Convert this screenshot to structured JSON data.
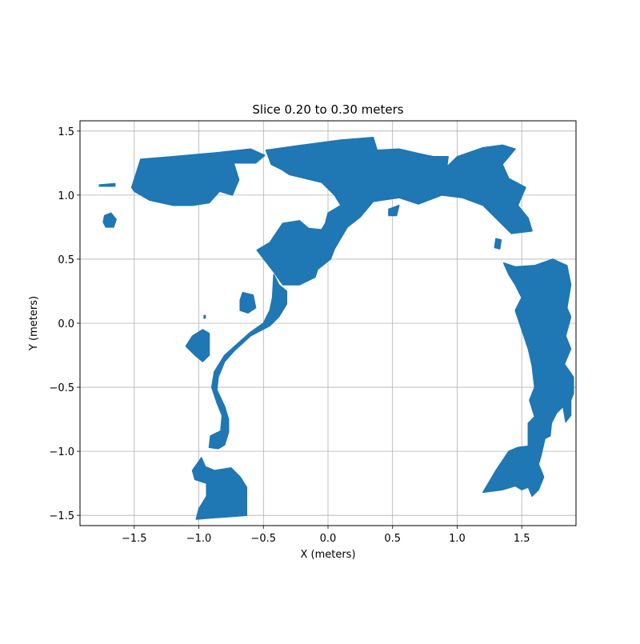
{
  "chart_data": {
    "type": "scatter",
    "title": "Slice 0.20 to 0.30 meters",
    "xlabel": "X (meters)",
    "ylabel": "Y (meters)",
    "xlim": [
      -1.92,
      1.92
    ],
    "ylim": [
      -1.58,
      1.58
    ],
    "x_ticks": [
      -1.5,
      -1.0,
      -0.5,
      0.0,
      0.5,
      1.0,
      1.5
    ],
    "x_tick_labels": [
      "−1.5",
      "−1.0",
      "−0.5",
      "0.0",
      "0.5",
      "1.0",
      "1.5"
    ],
    "y_ticks": [
      -1.5,
      -1.0,
      -0.5,
      0.0,
      0.5,
      1.0,
      1.5
    ],
    "y_tick_labels": [
      "−1.5",
      "−1.0",
      "−0.5",
      "0.0",
      "0.5",
      "1.0",
      "1.5"
    ],
    "grid": true,
    "color": "#1f77b4",
    "regions": [
      {
        "name": "top-left-mass",
        "points": [
          [
            -1.52,
            1.06
          ],
          [
            -1.45,
            1.28
          ],
          [
            -1.2,
            1.3
          ],
          [
            -0.87,
            1.33
          ],
          [
            -0.6,
            1.36
          ],
          [
            -0.49,
            1.31
          ],
          [
            -0.56,
            1.25
          ],
          [
            -0.73,
            1.25
          ],
          [
            -0.69,
            1.12
          ],
          [
            -0.74,
            1.0
          ],
          [
            -0.84,
            1.03
          ],
          [
            -0.92,
            0.94
          ],
          [
            -1.05,
            0.92
          ],
          [
            -1.2,
            0.92
          ],
          [
            -1.38,
            0.96
          ],
          [
            -1.5,
            1.03
          ]
        ]
      },
      {
        "name": "far-left-dash",
        "points": [
          [
            -1.77,
            1.08
          ],
          [
            -1.65,
            1.09
          ],
          [
            -1.65,
            1.07
          ],
          [
            -1.77,
            1.07
          ]
        ]
      },
      {
        "name": "left-blob",
        "points": [
          [
            -1.73,
            0.84
          ],
          [
            -1.68,
            0.86
          ],
          [
            -1.64,
            0.81
          ],
          [
            -1.66,
            0.75
          ],
          [
            -1.72,
            0.75
          ],
          [
            -1.74,
            0.79
          ]
        ]
      },
      {
        "name": "top-arc-center",
        "points": [
          [
            -0.48,
            1.35
          ],
          [
            -0.2,
            1.39
          ],
          [
            0.1,
            1.43
          ],
          [
            0.35,
            1.45
          ],
          [
            0.38,
            1.35
          ],
          [
            0.55,
            1.36
          ],
          [
            0.72,
            1.32
          ],
          [
            0.82,
            1.3
          ],
          [
            0.93,
            1.3
          ],
          [
            0.92,
            1.22
          ],
          [
            1.0,
            1.3
          ],
          [
            1.2,
            1.37
          ],
          [
            1.35,
            1.39
          ],
          [
            1.45,
            1.36
          ],
          [
            1.35,
            1.24
          ],
          [
            1.4,
            1.13
          ],
          [
            1.53,
            1.06
          ],
          [
            1.47,
            0.92
          ],
          [
            1.55,
            0.82
          ],
          [
            1.58,
            0.72
          ],
          [
            1.42,
            0.7
          ],
          [
            1.3,
            0.82
          ],
          [
            1.2,
            0.92
          ],
          [
            1.04,
            0.98
          ],
          [
            0.88,
            1.0
          ],
          [
            0.7,
            0.93
          ],
          [
            0.55,
            0.98
          ],
          [
            0.35,
            0.95
          ],
          [
            0.25,
            0.83
          ],
          [
            0.15,
            0.75
          ],
          [
            0.05,
            0.58
          ],
          [
            0.02,
            0.5
          ],
          [
            -0.08,
            0.42
          ],
          [
            -0.1,
            0.36
          ],
          [
            -0.22,
            0.3
          ],
          [
            -0.35,
            0.3
          ],
          [
            -0.42,
            0.4
          ],
          [
            -0.55,
            0.57
          ],
          [
            -0.45,
            0.63
          ],
          [
            -0.35,
            0.78
          ],
          [
            -0.22,
            0.8
          ],
          [
            -0.15,
            0.74
          ],
          [
            -0.05,
            0.73
          ],
          [
            -0.02,
            0.78
          ],
          [
            0.0,
            0.86
          ],
          [
            0.1,
            0.92
          ],
          [
            0.05,
            1.0
          ],
          [
            -0.05,
            1.1
          ],
          [
            -0.3,
            1.16
          ],
          [
            -0.36,
            1.2
          ],
          [
            -0.44,
            1.24
          ]
        ]
      },
      {
        "name": "right-arc-upper",
        "points": [
          [
            1.36,
            0.47
          ],
          [
            1.45,
            0.44
          ],
          [
            1.6,
            0.45
          ],
          [
            1.74,
            0.5
          ],
          [
            1.85,
            0.45
          ],
          [
            1.88,
            0.3
          ],
          [
            1.85,
            0.12
          ],
          [
            1.88,
            0.05
          ],
          [
            1.84,
            -0.1
          ],
          [
            1.88,
            -0.2
          ],
          [
            1.83,
            -0.32
          ],
          [
            1.9,
            -0.42
          ],
          [
            1.9,
            -0.55
          ],
          [
            1.88,
            -0.6
          ],
          [
            1.88,
            -0.72
          ],
          [
            1.84,
            -0.77
          ],
          [
            1.82,
            -0.65
          ],
          [
            1.77,
            -0.7
          ],
          [
            1.73,
            -0.78
          ],
          [
            1.72,
            -0.88
          ],
          [
            1.68,
            -0.9
          ],
          [
            1.65,
            -1.03
          ],
          [
            1.63,
            -1.1
          ],
          [
            1.67,
            -1.2
          ],
          [
            1.63,
            -1.3
          ],
          [
            1.58,
            -1.35
          ],
          [
            1.55,
            -1.28
          ],
          [
            1.5,
            -1.3
          ],
          [
            1.45,
            -1.27
          ],
          [
            1.35,
            -1.3
          ],
          [
            1.2,
            -1.32
          ],
          [
            1.3,
            -1.15
          ],
          [
            1.4,
            -1.0
          ],
          [
            1.47,
            -0.97
          ],
          [
            1.55,
            -0.96
          ],
          [
            1.55,
            -0.88
          ],
          [
            1.55,
            -0.78
          ],
          [
            1.6,
            -0.73
          ],
          [
            1.56,
            -0.6
          ],
          [
            1.6,
            -0.5
          ],
          [
            1.58,
            -0.33
          ],
          [
            1.55,
            -0.2
          ],
          [
            1.5,
            -0.05
          ],
          [
            1.45,
            0.1
          ],
          [
            1.5,
            0.2
          ],
          [
            1.45,
            0.3
          ],
          [
            1.4,
            0.38
          ]
        ]
      },
      {
        "name": "left-corridor",
        "points": [
          [
            -0.42,
            0.38
          ],
          [
            -0.38,
            0.3
          ],
          [
            -0.32,
            0.25
          ],
          [
            -0.32,
            0.15
          ],
          [
            -0.38,
            0.05
          ],
          [
            -0.45,
            -0.02
          ],
          [
            -0.6,
            -0.1
          ],
          [
            -0.73,
            -0.22
          ],
          [
            -0.8,
            -0.3
          ],
          [
            -0.85,
            -0.42
          ],
          [
            -0.86,
            -0.52
          ],
          [
            -0.8,
            -0.65
          ],
          [
            -0.77,
            -0.75
          ],
          [
            -0.77,
            -0.85
          ],
          [
            -0.8,
            -0.95
          ],
          [
            -0.85,
            -0.98
          ],
          [
            -0.92,
            -0.97
          ],
          [
            -0.91,
            -0.88
          ],
          [
            -0.83,
            -0.84
          ],
          [
            -0.82,
            -0.72
          ],
          [
            -0.86,
            -0.62
          ],
          [
            -0.9,
            -0.5
          ],
          [
            -0.88,
            -0.38
          ],
          [
            -0.8,
            -0.25
          ],
          [
            -0.7,
            -0.16
          ],
          [
            -0.6,
            -0.07
          ],
          [
            -0.5,
            0.0
          ],
          [
            -0.45,
            0.1
          ],
          [
            -0.43,
            0.2
          ]
        ]
      },
      {
        "name": "left-mid-blob",
        "points": [
          [
            -0.66,
            0.24
          ],
          [
            -0.58,
            0.22
          ],
          [
            -0.56,
            0.12
          ],
          [
            -0.62,
            0.08
          ],
          [
            -0.68,
            0.1
          ],
          [
            -0.68,
            0.18
          ]
        ]
      },
      {
        "name": "left-small-blob",
        "points": [
          [
            -0.97,
            -0.05
          ],
          [
            -0.92,
            -0.08
          ],
          [
            -0.92,
            -0.25
          ],
          [
            -0.97,
            -0.3
          ],
          [
            -1.03,
            -0.25
          ],
          [
            -1.1,
            -0.18
          ],
          [
            -1.05,
            -0.1
          ]
        ]
      },
      {
        "name": "bottom-left-mass",
        "points": [
          [
            -0.98,
            -1.05
          ],
          [
            -0.95,
            -1.12
          ],
          [
            -0.88,
            -1.15
          ],
          [
            -0.75,
            -1.13
          ],
          [
            -0.68,
            -1.2
          ],
          [
            -0.63,
            -1.28
          ],
          [
            -0.63,
            -1.5
          ],
          [
            -0.75,
            -1.51
          ],
          [
            -0.9,
            -1.52
          ],
          [
            -1.02,
            -1.53
          ],
          [
            -1.0,
            -1.45
          ],
          [
            -0.94,
            -1.35
          ],
          [
            -0.94,
            -1.25
          ],
          [
            -1.03,
            -1.22
          ],
          [
            -1.05,
            -1.15
          ]
        ]
      },
      {
        "name": "small-dot-a",
        "points": [
          [
            -0.96,
            0.06
          ],
          [
            -0.95,
            0.06
          ],
          [
            -0.95,
            0.04
          ],
          [
            -0.96,
            0.04
          ]
        ]
      },
      {
        "name": "small-dot-b",
        "points": [
          [
            1.3,
            0.66
          ],
          [
            1.34,
            0.65
          ],
          [
            1.33,
            0.58
          ],
          [
            1.29,
            0.59
          ]
        ]
      },
      {
        "name": "small-dot-c",
        "points": [
          [
            0.47,
            0.89
          ],
          [
            0.55,
            0.92
          ],
          [
            0.53,
            0.84
          ],
          [
            0.47,
            0.84
          ]
        ]
      }
    ]
  }
}
